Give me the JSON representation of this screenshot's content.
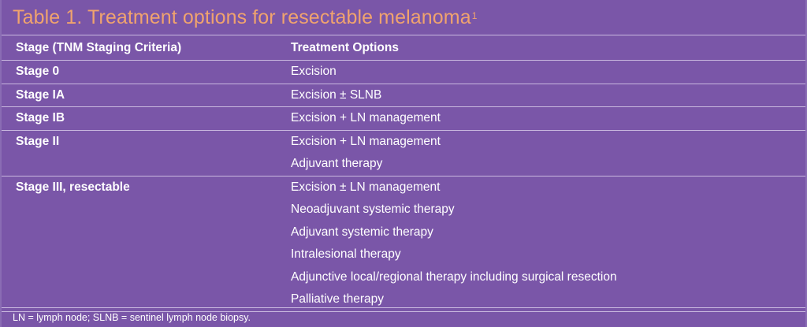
{
  "title": {
    "text": "Table 1. Treatment options for resectable melanoma",
    "superscript": "1"
  },
  "table": {
    "columns": [
      "Stage (TNM Staging Criteria)",
      "Treatment Options"
    ],
    "rows": [
      {
        "stage": "Stage 0",
        "options": [
          "Excision"
        ]
      },
      {
        "stage": "Stage IA",
        "options": [
          "Excision ± SLNB"
        ]
      },
      {
        "stage": "Stage IB",
        "options": [
          "Excision + LN management"
        ]
      },
      {
        "stage": "Stage II",
        "options": [
          "Excision + LN management",
          "Adjuvant therapy"
        ]
      },
      {
        "stage": "Stage III, resectable",
        "options": [
          "Excision ± LN management",
          "Neoadjuvant systemic therapy",
          "Adjuvant systemic therapy",
          "Intralesional therapy",
          "Adjunctive local/regional therapy including surgical resection",
          "Palliative therapy"
        ]
      }
    ]
  },
  "footnote": "LN = lymph node; SLNB = sentinel lymph node biopsy.",
  "colors": {
    "background": "#7a56a8",
    "title": "#f0a36e",
    "rule": "#c9b8df",
    "text": "#ffffff"
  }
}
